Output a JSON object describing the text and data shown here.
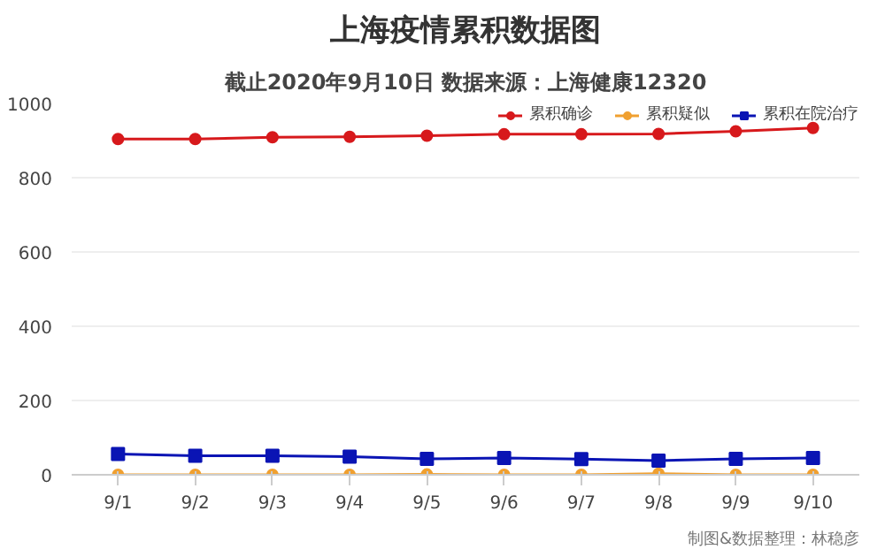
{
  "chart_data": {
    "type": "line",
    "title": "上海疫情累积数据图",
    "subtitle": "截止2020年9月10日 数据来源：上海健康12320",
    "categories": [
      "9/1",
      "9/2",
      "9/3",
      "9/4",
      "9/5",
      "9/6",
      "9/7",
      "9/8",
      "9/9",
      "9/10"
    ],
    "series": [
      {
        "name": "累积确诊",
        "color": "#d7191c",
        "marker": "circle",
        "values": [
          904,
          904,
          909,
          910,
          913,
          917,
          917,
          918,
          925,
          934
        ]
      },
      {
        "name": "累积疑似",
        "color": "#f0a030",
        "marker": "circle",
        "values": [
          0,
          0,
          0,
          0,
          1,
          0,
          0,
          3,
          0,
          0
        ]
      },
      {
        "name": "累积在院治疗",
        "color": "#0a14b4",
        "marker": "square",
        "values": [
          56,
          51,
          51,
          49,
          43,
          45,
          42,
          38,
          43,
          45
        ]
      }
    ],
    "ylim": [
      0,
      1000
    ],
    "yticks": [
      0,
      200,
      400,
      600,
      800,
      1000
    ],
    "grid": "y",
    "legend": "top right",
    "line_style": "solid",
    "annotations": [
      "制图&数据整理：林稳彦"
    ]
  }
}
